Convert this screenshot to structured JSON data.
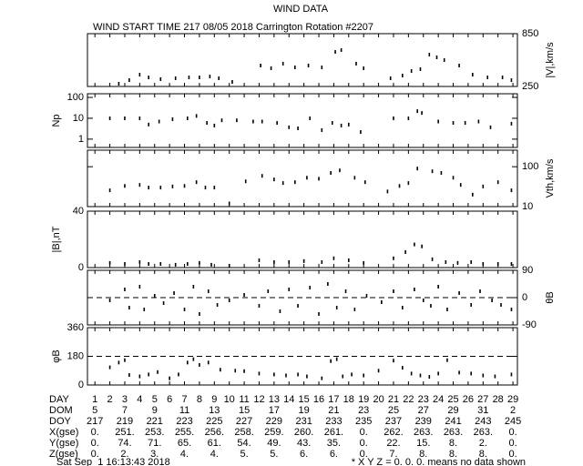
{
  "chart_data": {
    "type": "multi-panel",
    "title": "WIND DATA",
    "subtitle": "WIND START TIME 217 08/05 2018 Carrington Rotation #2207",
    "xlim": [
      0.5,
      29.3
    ],
    "xticks": [
      1,
      2,
      3,
      4,
      5,
      6,
      7,
      8,
      9,
      10,
      11,
      12,
      13,
      14,
      15,
      16,
      17,
      18,
      19,
      20,
      21,
      22,
      23,
      24,
      25,
      26,
      27,
      28,
      29
    ],
    "color": "#000000",
    "panels": [
      {
        "type": "scatter",
        "ylabel": "|V|,km/s",
        "tick_side": "right",
        "log": false,
        "ylim": [
          250,
          850
        ],
        "yticks": [
          250,
          850
        ],
        "x": [
          2.6,
          3.3,
          4,
          4.6,
          5.4,
          6.4,
          7.3,
          8,
          8.7,
          9.3,
          10.2,
          12.1,
          12.8,
          13.6,
          14.4,
          15.3,
          16.2,
          17.1,
          17.5,
          18.5,
          19,
          20.8,
          21.6,
          22.2,
          22.8,
          23.4,
          23.9,
          24.4,
          25.4,
          26.3,
          27.3,
          28.3,
          28.9
        ],
        "values": [
          281,
          322,
          384,
          353,
          333,
          343,
          353,
          353,
          363,
          343,
          302,
          488,
          457,
          509,
          467,
          488,
          467,
          643,
          664,
          509,
          457,
          343,
          374,
          426,
          447,
          612,
          581,
          550,
          488,
          384,
          353,
          353,
          322
        ]
      },
      {
        "type": "scatter",
        "ylabel": "Np",
        "tick_side": "left",
        "log": true,
        "ylim": [
          0.4,
          150
        ],
        "yticks": [
          1,
          10,
          100
        ],
        "x": [
          2,
          3,
          4,
          4.6,
          5.3,
          6.2,
          7.2,
          7.8,
          8.5,
          9,
          9.5,
          10.5,
          11.6,
          12.2,
          13.2,
          14,
          14.6,
          15.4,
          16.2,
          16.9,
          17.5,
          18,
          18.8,
          21,
          22,
          22.6,
          22.9,
          24,
          25,
          25.8,
          26.7,
          27.5,
          28.9
        ],
        "values": [
          10,
          10,
          10,
          5,
          7,
          9,
          10,
          13,
          6,
          4.5,
          8,
          8,
          7,
          7,
          6,
          3.7,
          3.3,
          10,
          2.7,
          6,
          4.5,
          5,
          2.2,
          10,
          10,
          22,
          18,
          7,
          6,
          6,
          7,
          3.7,
          5.5
        ]
      },
      {
        "type": "scatter",
        "ylabel": "Vth,km/s",
        "tick_side": "right",
        "log": true,
        "ylim": [
          10,
          260
        ],
        "yticks": [
          10,
          100
        ],
        "x": [
          2,
          3,
          4,
          4.6,
          5.4,
          6.2,
          7,
          7.8,
          8.4,
          9,
          10,
          11.1,
          12.2,
          13,
          13.6,
          14.4,
          15.2,
          16,
          16.8,
          17.4,
          18.4,
          19.1,
          20.6,
          21.4,
          22,
          22.6,
          23.6,
          24.2,
          25,
          25.5,
          26.3,
          27,
          28,
          28.9
        ],
        "values": [
          25.6,
          33,
          35,
          30,
          30,
          32,
          33,
          41,
          30,
          30,
          12,
          43,
          59,
          48,
          39,
          41,
          53,
          50,
          70,
          81,
          53,
          41,
          24,
          33,
          39,
          90,
          77,
          70,
          53,
          35,
          20,
          32,
          41,
          25.6
        ]
      },
      {
        "type": "scatter",
        "ylabel": "|B|,nT",
        "tick_side": "left",
        "log": false,
        "ylim": [
          0,
          40
        ],
        "yticks": [
          0,
          40
        ],
        "x": [
          2,
          3,
          4,
          4.6,
          5.4,
          6.4,
          7.2,
          8,
          8.8,
          10,
          12,
          13,
          14,
          15,
          16.2,
          17,
          18,
          19,
          21,
          21.8,
          22.4,
          22.9,
          23.6,
          24.5,
          25.3,
          26.2,
          27,
          28,
          28.9
        ],
        "values": [
          3.3,
          2.6,
          3.9,
          2.6,
          2.6,
          2,
          2.6,
          3.3,
          2,
          1.3,
          5.2,
          3.9,
          3.9,
          4.6,
          3.9,
          6.6,
          5.2,
          3.3,
          6.6,
          11,
          16.4,
          15,
          5.9,
          3.9,
          3.3,
          3.9,
          2.6,
          2.6,
          2.6
        ]
      },
      {
        "type": "scatter",
        "ylabel": "θB",
        "tick_side": "right",
        "log": false,
        "ylim": [
          -90,
          90
        ],
        "yticks": [
          -90,
          0,
          90
        ],
        "reference_line": 0,
        "x": [
          2,
          3,
          3.3,
          4,
          4.3,
          5,
          5.6,
          6.3,
          7,
          7.6,
          8,
          8.6,
          9.2,
          10,
          11,
          12,
          12.6,
          13.4,
          14,
          14.6,
          15.4,
          16,
          16.6,
          17.2,
          17.8,
          18.4,
          19.2,
          20.2,
          21,
          21.6,
          22.4,
          23,
          23.5,
          24,
          24.6,
          25.4,
          26.2,
          26.8,
          27.6,
          28.2,
          28.9
        ],
        "values": [
          -9,
          27,
          -33,
          36,
          -39,
          6,
          -18,
          15,
          -39,
          36,
          -54,
          21,
          -24,
          -9,
          9,
          -27,
          21,
          -45,
          27,
          -27,
          33,
          -54,
          45,
          -33,
          21,
          -39,
          6,
          -15,
          21,
          -33,
          27,
          -9,
          -27,
          36,
          -39,
          15,
          -24,
          21,
          -9,
          -24,
          -39
        ]
      },
      {
        "type": "scatter",
        "ylabel": "φB",
        "tick_side": "left",
        "log": false,
        "ylim": [
          0,
          360
        ],
        "yticks": [
          0,
          180,
          360
        ],
        "reference_line": 180,
        "x": [
          2,
          2.6,
          3,
          3.3,
          4,
          4.6,
          5.2,
          6,
          6.6,
          7.2,
          7.6,
          8,
          8.6,
          9.4,
          10.4,
          11,
          12,
          13,
          13.8,
          14.6,
          15.2,
          16.2,
          16.8,
          17.2,
          17.6,
          18.2,
          19,
          20,
          21,
          21.6,
          22.2,
          22.8,
          23.4,
          24,
          24.6,
          25.4,
          26.2,
          27,
          27.8,
          28.9
        ],
        "values": [
          111,
          141,
          156,
          63,
          54,
          66,
          81,
          42,
          66,
          141,
          162,
          126,
          141,
          96,
          90,
          87,
          72,
          66,
          60,
          66,
          54,
          42,
          150,
          162,
          54,
          66,
          60,
          90,
          153,
          108,
          72,
          60,
          51,
          72,
          156,
          78,
          72,
          60,
          54,
          66
        ]
      }
    ]
  },
  "table": {
    "rows": [
      {
        "label": "DAY",
        "cells": [
          1,
          2,
          3,
          4,
          5,
          6,
          7,
          8,
          9,
          10,
          11,
          12,
          13,
          14,
          15,
          16,
          17,
          18,
          19,
          20,
          21,
          22,
          23,
          24,
          25,
          26,
          27,
          28,
          29
        ]
      },
      {
        "label": "DOM",
        "cells": [
          "5",
          "7",
          "9",
          "11",
          "13",
          "15",
          "17",
          "19",
          "21",
          "23",
          "25",
          "27",
          "29",
          "31",
          "2"
        ]
      },
      {
        "label": "DOY",
        "cells": [
          "217",
          "219",
          "221",
          "223",
          "225",
          "227",
          "229",
          "231",
          "233",
          "235",
          "237",
          "239",
          "241",
          "243",
          "245"
        ]
      },
      {
        "label": "X(gse)",
        "cells": [
          "0.",
          "251.",
          "253.",
          "255.",
          "256.",
          "258.",
          "259.",
          "260.",
          "261.",
          "0.",
          "262.",
          "263.",
          "263.",
          "263.",
          "0."
        ]
      },
      {
        "label": "Y(gse)",
        "cells": [
          "0.",
          "74.",
          "71.",
          "65.",
          "61.",
          "54.",
          "49.",
          "43.",
          "35.",
          "0.",
          "22.",
          "15.",
          "8.",
          "2.",
          "0."
        ]
      },
      {
        "label": "Z(gse)",
        "cells": [
          "0.",
          "2.",
          "3.",
          "4.",
          "4.",
          "5.",
          "5.",
          "6.",
          "6.",
          "0.",
          "7.",
          "8.",
          "8.",
          "8.",
          "0."
        ]
      }
    ]
  },
  "footer": {
    "date": "Sat Sep  1 16:13:43 2018",
    "note": "* X Y Z = 0. 0. 0. means no data shown"
  }
}
